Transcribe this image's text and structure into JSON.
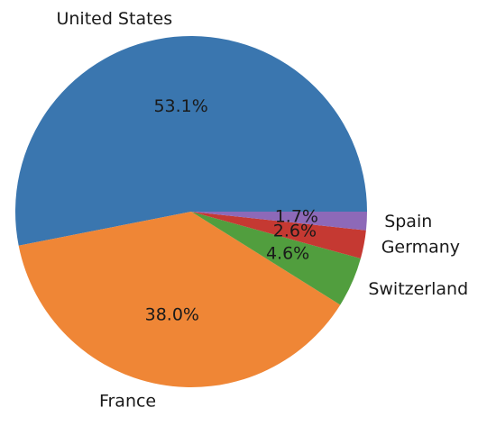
{
  "chart_data": {
    "type": "pie",
    "title": "",
    "labels": [
      "United States",
      "France",
      "Switzerland",
      "Germany",
      "Spain"
    ],
    "values": [
      53.1,
      38.0,
      4.6,
      2.6,
      1.7
    ],
    "percent_labels": [
      "53.1%",
      "38.0%",
      "4.6%",
      "2.6%",
      "1.7%"
    ],
    "colors": [
      "#3a76af",
      "#ef8636",
      "#519e3e",
      "#c53932",
      "#8d69b8"
    ],
    "start_angle_deg": 0,
    "direction": "counterclockwise",
    "legend": "none"
  }
}
